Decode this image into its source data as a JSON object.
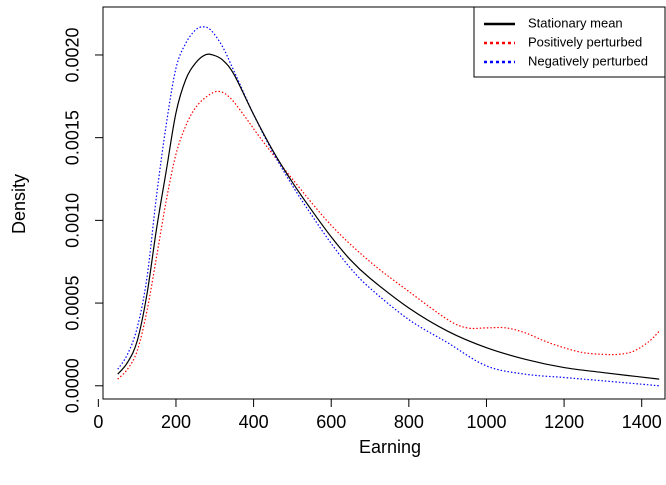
{
  "chart_data": {
    "type": "line",
    "xlabel": "Earning",
    "ylabel": "Density",
    "xlim": [
      12,
      1460
    ],
    "ylim": [
      -8e-05,
      0.00229
    ],
    "x_ticks": [
      0,
      200,
      400,
      600,
      800,
      1000,
      1200,
      1400
    ],
    "x_tick_labels": [
      "0",
      "200",
      "400",
      "600",
      "800",
      "1000",
      "1200",
      "1400"
    ],
    "y_ticks": [
      0,
      0.0005,
      0.001,
      0.0015,
      0.002
    ],
    "y_tick_labels": [
      "0.0000",
      "0.0005",
      "0.0010",
      "0.0015",
      "0.0020"
    ],
    "legend_position": "top-right",
    "series": [
      {
        "name": "Stationary mean",
        "color": "#000000",
        "dash": "solid",
        "x": [
          50,
          75,
          100,
          125,
          150,
          175,
          200,
          225,
          250,
          275,
          295,
          320,
          350,
          400,
          450,
          500,
          550,
          600,
          650,
          700,
          800,
          900,
          1000,
          1100,
          1200,
          1300,
          1445
        ],
        "y": [
          7e-05,
          0.00014,
          0.00027,
          0.00055,
          0.00095,
          0.0013,
          0.00165,
          0.00185,
          0.00195,
          0.002,
          0.002,
          0.00197,
          0.00188,
          0.00164,
          0.00142,
          0.00123,
          0.00106,
          0.0009,
          0.00076,
          0.00065,
          0.00047,
          0.00033,
          0.00023,
          0.00016,
          0.00011,
          8e-05,
          4e-05
        ]
      },
      {
        "name": "Positively perturbed",
        "color": "#ff0000",
        "dash": "dotted",
        "x": [
          50,
          75,
          100,
          125,
          150,
          175,
          200,
          225,
          250,
          280,
          310,
          340,
          380,
          420,
          500,
          600,
          700,
          800,
          900,
          950,
          1000,
          1050,
          1100,
          1150,
          1200,
          1250,
          1300,
          1340,
          1380,
          1420,
          1445
        ],
        "y": [
          4e-05,
          0.0001,
          0.00021,
          0.00045,
          0.00078,
          0.00112,
          0.0014,
          0.00157,
          0.00168,
          0.00175,
          0.00178,
          0.00174,
          0.00162,
          0.00149,
          0.00125,
          0.00097,
          0.00075,
          0.00057,
          0.0004,
          0.00035,
          0.00035,
          0.00035,
          0.00032,
          0.00027,
          0.00023,
          0.0002,
          0.00019,
          0.00019,
          0.00021,
          0.00027,
          0.00033
        ]
      },
      {
        "name": "Negatively perturbed",
        "color": "#0000ff",
        "dash": "dotted",
        "x": [
          50,
          75,
          100,
          125,
          150,
          175,
          200,
          225,
          250,
          270,
          290,
          320,
          350,
          400,
          450,
          500,
          550,
          600,
          650,
          700,
          800,
          900,
          1000,
          1100,
          1200,
          1300,
          1445
        ],
        "y": [
          0.0001,
          0.00019,
          0.00035,
          0.00065,
          0.00115,
          0.00158,
          0.00192,
          0.00207,
          0.00215,
          0.00217,
          0.00215,
          0.00205,
          0.0019,
          0.00164,
          0.00141,
          0.00121,
          0.00103,
          0.00086,
          0.00071,
          0.00059,
          0.0004,
          0.00026,
          0.00012,
          7e-05,
          5e-05,
          3e-05,
          0.0
        ]
      }
    ]
  }
}
